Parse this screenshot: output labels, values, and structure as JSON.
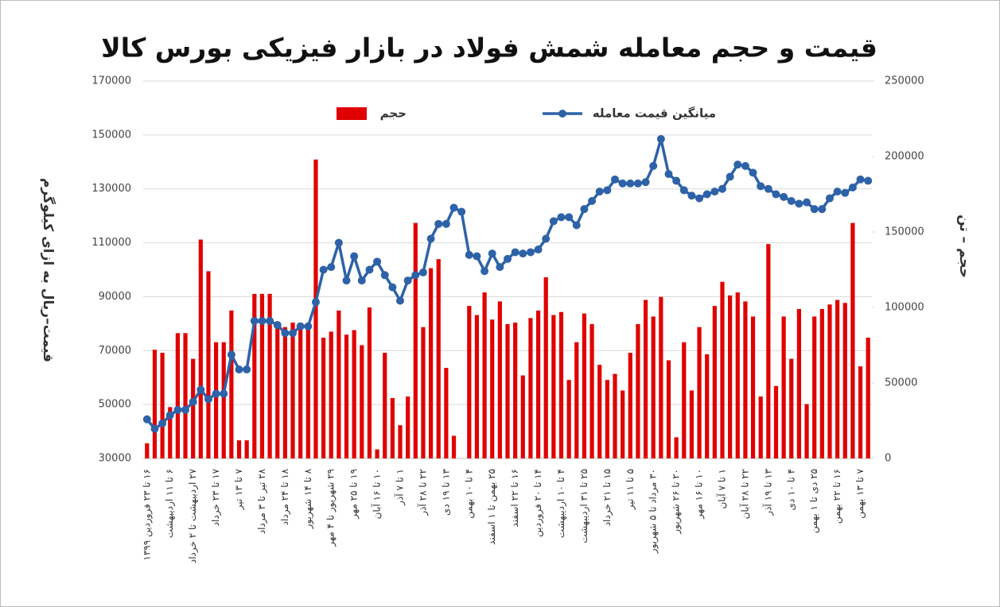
{
  "chart_data": {
    "type": "combo",
    "title": "قیمت و حجم معامله شمش فولاد در بازار فیزیکی بورس کالا",
    "y_label": "قیمت–ریال به ازای کیلوگرم",
    "y2_label": "حجم – تن",
    "categories": [
      "۱۶ تا ۲۳ فروردین ۱۳۹۹",
      null,
      null,
      "۶ تا ۱۱ اردیبهشت",
      null,
      null,
      "۲۷ اردیبهشت تا ۲ خرداد",
      null,
      null,
      "۱۷ تا ۲۳ خرداد",
      null,
      null,
      "۷ تا ۱۳ تیر",
      null,
      null,
      "۲۸ تیر تا ۳ مرداد",
      null,
      null,
      "۱۸ تا ۲۴ مرداد",
      null,
      null,
      "۸ تا ۱۴ شهریور",
      null,
      null,
      "۲۹ شهریور تا ۴ مهر",
      null,
      null,
      "۱۹ تا ۲۵ مهر",
      null,
      null,
      "۱۰ تا ۱۶ آبان",
      null,
      null,
      "۱ تا ۷ آذر",
      null,
      null,
      "۲۲ تا ۲۸ آذر",
      null,
      null,
      "۱۳ تا ۱۹ دی",
      null,
      null,
      "۴ تا ۱۰ بهمن",
      null,
      null,
      "۲۵ بهمن تا ۱ اسفند",
      null,
      null,
      "۱۶ تا ۲۲ اسفند",
      null,
      null,
      "۱۴ تا ۲۰ فروردین",
      null,
      null,
      "۴ تا ۱۰ اردیبهشت",
      null,
      null,
      "۲۵ تا ۳۱ اردیبهشت",
      null,
      null,
      "۱۵ تا ۲۱ خرداد",
      null,
      null,
      "۵ تا ۱۱ تیر",
      null,
      null,
      "۳۰ مرداد تا ۵ شهریور",
      null,
      null,
      "۲۰ تا ۲۶ شهریور",
      null,
      null,
      "۱۰ تا ۱۶ مهر",
      null,
      null,
      "۱ تا ۷ آبان",
      null,
      null,
      "۲۲ تا ۲۸ آبان",
      null,
      null,
      "۱۳ تا ۱۹ آذر",
      null,
      null,
      "۴ تا ۱۰ دی",
      null,
      null,
      "۲۵ دی تا ۱ بهمن",
      null,
      null,
      "۱۶ تا ۲۲ بهمن",
      null,
      null,
      "۷ تا ۱۳ بهمن",
      null
    ],
    "series": [
      {
        "name": "حجم",
        "type": "bar",
        "axis": "y2",
        "color": "#e00000",
        "values": [
          10000,
          72000,
          70000,
          34000,
          83000,
          83000,
          66000,
          145000,
          124000,
          77000,
          77000,
          98000,
          12000,
          12000,
          109000,
          109000,
          109000,
          88000,
          87000,
          90000,
          90000,
          89000,
          198000,
          80000,
          84000,
          98000,
          82000,
          85000,
          75000,
          100000,
          6000,
          70000,
          40000,
          22000,
          41000,
          156000,
          87000,
          126000,
          132000,
          60000,
          15000,
          null,
          101000,
          95000,
          110000,
          92000,
          104000,
          89000,
          90000,
          55000,
          93000,
          98000,
          120000,
          95000,
          97000,
          52000,
          77000,
          96000,
          89000,
          62000,
          52000,
          56000,
          45000,
          70000,
          89000,
          105000,
          94000,
          107000,
          65000,
          14000,
          77000,
          45000,
          87000,
          69000,
          101000,
          117000,
          108000,
          110000,
          104000,
          94000,
          41000,
          142000,
          48000,
          94000,
          66000,
          99000,
          36000,
          94000,
          99000,
          102000,
          105000,
          103000,
          156000,
          61000,
          80000
        ]
      },
      {
        "name": "میانگین قیمت معامله",
        "type": "line",
        "color": "#2e62a8",
        "values": [
          44500,
          41000,
          43000,
          46000,
          48000,
          48000,
          51000,
          55500,
          52000,
          54000,
          54000,
          68500,
          63000,
          63000,
          81000,
          81000,
          81000,
          79500,
          76500,
          76500,
          79000,
          79000,
          88000,
          100000,
          101000,
          110000,
          96000,
          105000,
          96000,
          100000,
          103000,
          98000,
          93500,
          88500,
          96000,
          98000,
          99000,
          111500,
          117000,
          117000,
          123000,
          121500,
          105500,
          105000,
          99500,
          106000,
          101000,
          104000,
          106500,
          106000,
          106500,
          107500,
          111500,
          118000,
          119500,
          119500,
          116500,
          122500,
          125500,
          129000,
          129500,
          133500,
          132000,
          132000,
          132000,
          132500,
          138500,
          148500,
          135500,
          133000,
          129500,
          127500,
          126500,
          128000,
          129000,
          130000,
          134500,
          139000,
          138500,
          136000,
          131000,
          130000,
          128000,
          127000,
          125500,
          124500,
          125000,
          122500,
          122500,
          126500,
          129000,
          128500,
          130500,
          133500,
          133000
        ]
      }
    ],
    "ylim": [
      30000,
      170000
    ],
    "yticks": [
      30000,
      50000,
      70000,
      90000,
      110000,
      130000,
      150000,
      170000
    ],
    "y2lim": [
      0,
      250000
    ],
    "y2ticks": [
      0,
      50000,
      100000,
      150000,
      200000,
      250000
    ],
    "grid": true,
    "legend": "top"
  }
}
